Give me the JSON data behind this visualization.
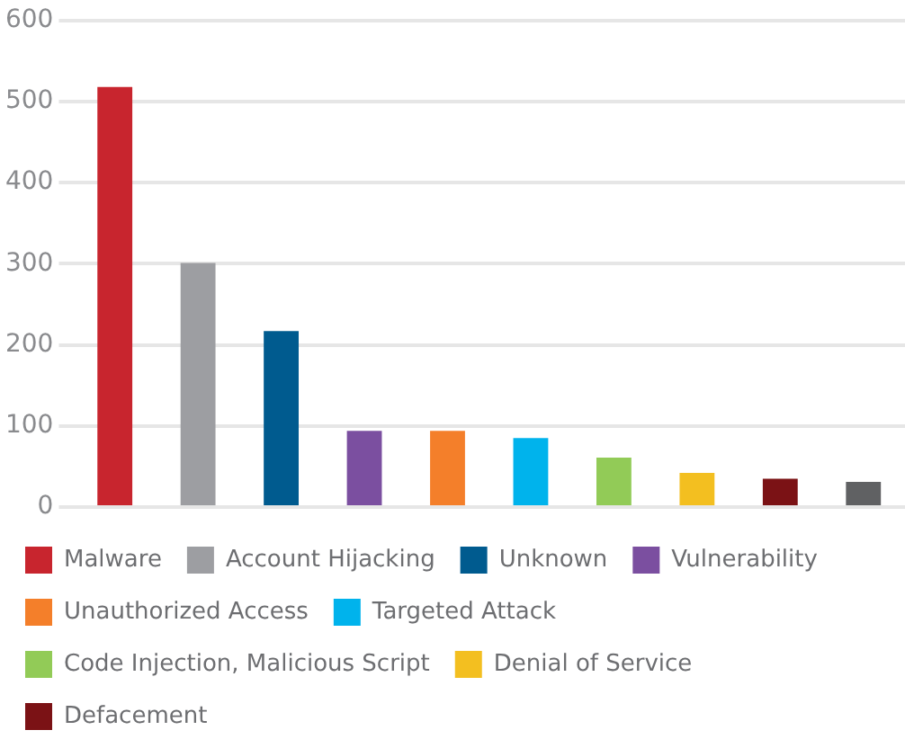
{
  "chart_data": {
    "type": "bar",
    "categories": [
      null,
      null,
      null,
      null,
      null,
      null,
      null,
      null,
      null,
      null
    ],
    "series": [
      {
        "name": "Malware",
        "color": "#c8252e",
        "values": [
          518,
          null,
          null,
          null,
          null,
          null,
          null,
          null,
          null,
          null
        ]
      },
      {
        "name": "Account Hijacking",
        "color": "#9d9ea2",
        "values": [
          null,
          301,
          null,
          null,
          null,
          null,
          null,
          null,
          null,
          null
        ]
      },
      {
        "name": "Unknown",
        "color": "#005b8f",
        "values": [
          null,
          null,
          217,
          null,
          null,
          null,
          null,
          null,
          null,
          null
        ]
      },
      {
        "name": "Vulnerability",
        "color": "#7b4fa0",
        "values": [
          null,
          null,
          null,
          94,
          null,
          null,
          null,
          null,
          null,
          null
        ]
      },
      {
        "name": "Unauthorized Access",
        "color": "#f47f2a",
        "values": [
          null,
          null,
          null,
          null,
          94,
          null,
          null,
          null,
          null,
          null
        ]
      },
      {
        "name": "Targeted Attack",
        "color": "#00b3ec",
        "values": [
          null,
          null,
          null,
          null,
          null,
          85,
          null,
          null,
          null,
          null
        ]
      },
      {
        "name": "Code Injection, Malicious Script",
        "color": "#92cb57",
        "values": [
          null,
          null,
          null,
          null,
          null,
          null,
          61,
          null,
          null,
          null
        ]
      },
      {
        "name": "Denial of Service",
        "color": "#f3bf20",
        "values": [
          null,
          null,
          null,
          null,
          null,
          null,
          null,
          42,
          null,
          null
        ]
      },
      {
        "name": "Defacement",
        "color": "#7b1215",
        "values": [
          null,
          null,
          null,
          null,
          null,
          null,
          null,
          null,
          35,
          null
        ]
      },
      {
        "color": "#606163",
        "values": [
          null,
          null,
          null,
          null,
          null,
          null,
          null,
          null,
          null,
          31
        ]
      }
    ],
    "ylim": [
      0,
      600
    ],
    "yticks": [
      0,
      100,
      200,
      300,
      400,
      500,
      600
    ],
    "grid": "y",
    "legend": "bottom",
    "tick_labels": "y"
  }
}
